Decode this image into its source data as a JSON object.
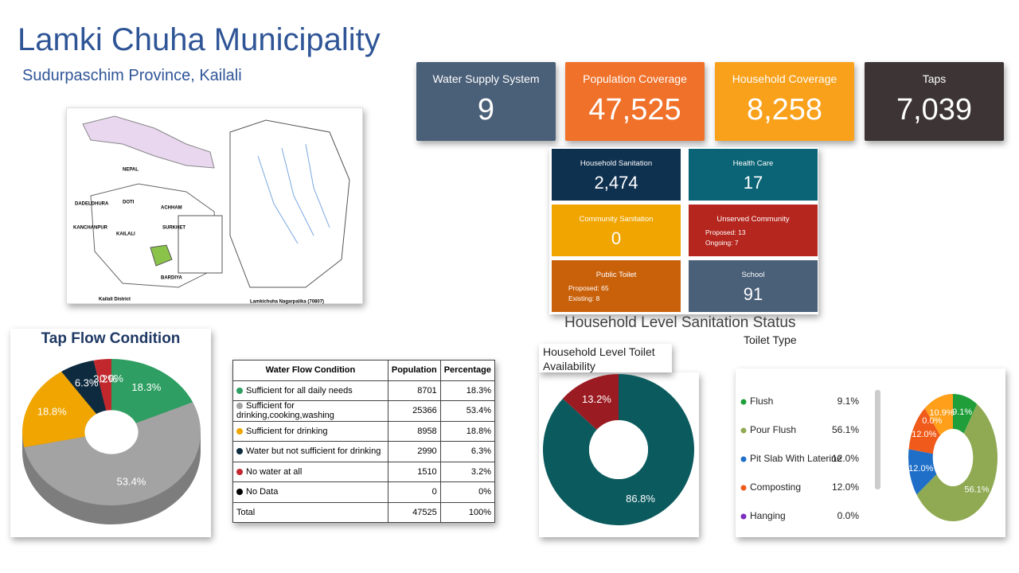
{
  "header": {
    "title": "Lamki Chuha Municipality",
    "subtitle": "Sudurpaschim Province, Kailali"
  },
  "map": {
    "labels": [
      "NEPAL",
      "DADELDHURA",
      "DOTI",
      "ACHHAM",
      "KANCHANPUR",
      "KAILALI",
      "SURKHET",
      "BARDIYA",
      "Kailali District",
      "Lamkichuha Nagarpalika (70807)"
    ]
  },
  "kpis": [
    {
      "label": "Water Supply System",
      "value": "9"
    },
    {
      "label": "Population Coverage",
      "value": "47,525"
    },
    {
      "label": "Household Coverage",
      "value": "8,258"
    },
    {
      "label": "Taps",
      "value": "7,039"
    }
  ],
  "sanitation": {
    "caption": "Household Level Sanitation Status",
    "cards": [
      {
        "label": "Household Sanitation",
        "value": "2,474"
      },
      {
        "label": "Health Care",
        "value": "17"
      },
      {
        "label": "Community Sanitation",
        "value": "0"
      },
      {
        "label": "Unserved Community",
        "lines": [
          "Proposed: 13",
          "Ongoing: 7"
        ]
      },
      {
        "label": "Public Toilet",
        "lines": [
          "Proposed: 65",
          "Existing: 8"
        ]
      },
      {
        "label": "School",
        "value": "91"
      }
    ]
  },
  "table": {
    "header": [
      "Water Flow Condition",
      "Population",
      "Percentage"
    ],
    "rows": [
      [
        "Sufficient for all daily needs",
        "8701",
        "18.3%"
      ],
      [
        "Sufficient for drinking,cooking,washing",
        "25366",
        "53.4%"
      ],
      [
        "Sufficient for drinking",
        "8958",
        "18.8%"
      ],
      [
        "Water but not sufficient for drinking",
        "2990",
        "6.3%"
      ],
      [
        "No water at all",
        "1510",
        "3.2%"
      ],
      [
        "No Data",
        "0",
        "0%"
      ],
      [
        "Total",
        "47525",
        "100%"
      ]
    ]
  },
  "chart_data": [
    {
      "type": "pie",
      "title": "Tap Flow Condition",
      "values": [
        18.3,
        53.4,
        18.8,
        6.3,
        3.2,
        0.0
      ],
      "value_labels": [
        "18.3%",
        "53.4%",
        "18.8%",
        "6.3%",
        "3.2%",
        "0.0%"
      ],
      "colors": [
        "#2e9e62",
        "#a3a3a3",
        "#f0a500",
        "#0d2a3f",
        "#c0282e",
        "#000000"
      ]
    },
    {
      "type": "pie",
      "title": "Household Level Toilet Availability",
      "values": [
        86.8,
        13.2
      ],
      "value_labels": [
        "86.8%",
        "13.2%"
      ],
      "colors": [
        "#0b5a5e",
        "#9b1b22"
      ]
    },
    {
      "type": "pie",
      "title": "Toilet Type",
      "categories": [
        "Flush",
        "Pour Flush",
        "Pit Slab With Laterine",
        "Composting",
        "Hanging",
        null
      ],
      "values": [
        9.1,
        56.1,
        12.0,
        12.0,
        0.0,
        10.9
      ],
      "value_labels": [
        "9.1%",
        "56.1%",
        "12.0%",
        "12.0%",
        "0.0%",
        "10.9%"
      ],
      "colors": [
        "#1f9e3a",
        "#8faa52",
        "#1f6fc9",
        "#f05a1a",
        "#7b2fbf",
        "#ff9f1a"
      ],
      "legend": "left"
    }
  ]
}
